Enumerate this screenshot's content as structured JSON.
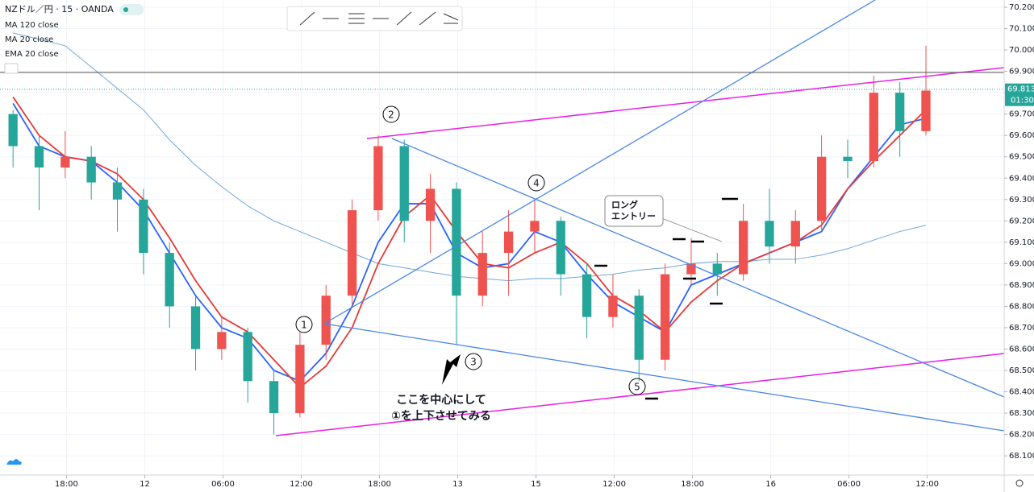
{
  "chart_data": {
    "type": "candlestick",
    "title": "NZドル／円 · 15 · OANDA",
    "up_color": "#ef5350",
    "down_color": "#26a69a",
    "x": [
      1,
      3,
      5,
      7,
      9,
      11,
      13,
      15,
      17,
      19,
      21,
      23,
      25,
      27,
      29,
      31,
      33,
      35,
      37,
      39,
      41,
      43,
      45,
      47,
      49,
      51,
      53,
      55,
      57,
      59,
      61,
      63,
      65,
      67,
      69,
      71
    ],
    "open": [
      69.7,
      69.55,
      69.45,
      69.5,
      69.38,
      69.3,
      69.05,
      68.8,
      68.6,
      68.68,
      68.45,
      68.3,
      68.62,
      68.85,
      69.25,
      69.55,
      69.2,
      69.35,
      68.85,
      69.05,
      69.15,
      69.2,
      68.95,
      68.75,
      68.85,
      68.55,
      68.95,
      69.0,
      68.95,
      69.2,
      69.08,
      69.2,
      69.5,
      69.48,
      69.8,
      69.62
    ],
    "high": [
      69.72,
      69.6,
      69.62,
      69.55,
      69.45,
      69.35,
      69.1,
      68.85,
      68.75,
      68.7,
      68.5,
      68.68,
      68.9,
      69.3,
      69.6,
      69.58,
      69.42,
      69.38,
      69.15,
      69.25,
      69.3,
      69.22,
      69.0,
      68.95,
      68.88,
      69.0,
      69.12,
      69.05,
      69.28,
      69.35,
      69.25,
      69.6,
      69.58,
      69.88,
      69.85,
      70.02
    ],
    "low": [
      69.45,
      69.25,
      69.4,
      69.3,
      69.15,
      68.95,
      68.7,
      68.5,
      68.55,
      68.35,
      68.2,
      68.28,
      68.55,
      68.8,
      69.2,
      69.1,
      69.05,
      68.62,
      68.8,
      68.85,
      69.05,
      68.85,
      68.65,
      68.7,
      68.45,
      68.5,
      68.9,
      68.85,
      68.92,
      69.0,
      69.0,
      69.15,
      69.4,
      69.45,
      69.5,
      69.6
    ],
    "close": [
      69.55,
      69.45,
      69.5,
      69.38,
      69.3,
      69.05,
      68.8,
      68.6,
      68.68,
      68.45,
      68.3,
      68.62,
      68.85,
      69.25,
      69.55,
      69.2,
      69.35,
      68.85,
      69.05,
      69.15,
      69.2,
      68.95,
      68.75,
      68.85,
      68.55,
      68.95,
      69.0,
      68.95,
      69.2,
      69.08,
      69.2,
      69.5,
      69.48,
      69.8,
      69.62,
      69.81
    ],
    "series": [
      {
        "name": "MA 120 close",
        "color": "#6fa8dc",
        "values": [
          70.08,
          70.05,
          70.02,
          69.92,
          69.82,
          69.72,
          69.58,
          69.46,
          69.36,
          69.27,
          69.2,
          69.15,
          69.1,
          69.05,
          69.0,
          68.98,
          68.96,
          68.94,
          68.93,
          68.92,
          68.93,
          68.93,
          68.94,
          68.95,
          68.97,
          68.98,
          69.0,
          69.01,
          69.01,
          69.02,
          69.02,
          69.04,
          69.07,
          69.11,
          69.15,
          69.18
        ]
      },
      {
        "name": "MA 20 close",
        "color": "#2962ff",
        "values": [
          69.75,
          69.55,
          69.5,
          69.48,
          69.38,
          69.25,
          69.05,
          68.85,
          68.7,
          68.65,
          68.5,
          68.45,
          68.58,
          68.8,
          69.1,
          69.28,
          69.28,
          69.05,
          68.98,
          69.0,
          69.15,
          69.1,
          68.95,
          68.82,
          68.75,
          68.68,
          68.9,
          68.95,
          69.0,
          69.05,
          69.1,
          69.15,
          69.35,
          69.5,
          69.65,
          69.68
        ]
      },
      {
        "name": "EMA 20 close",
        "color": "#e53935",
        "values": [
          69.78,
          69.6,
          69.5,
          69.48,
          69.42,
          69.3,
          69.12,
          68.92,
          68.75,
          68.68,
          68.55,
          68.42,
          68.52,
          68.7,
          69.0,
          69.22,
          69.32,
          69.15,
          69.0,
          68.98,
          69.05,
          69.1,
          69.0,
          68.85,
          68.78,
          68.68,
          68.82,
          68.92,
          69.0,
          69.05,
          69.1,
          69.18,
          69.35,
          69.48,
          69.6,
          69.72
        ]
      }
    ],
    "xlim": [
      0,
      77
    ],
    "xticks": [
      {
        "value": 5.1,
        "label": "18:00"
      },
      {
        "value": 11.1,
        "label": "12"
      },
      {
        "value": 17.1,
        "label": "06:00"
      },
      {
        "value": 23.1,
        "label": "12:00"
      },
      {
        "value": 29.1,
        "label": "18:00"
      },
      {
        "value": 35.1,
        "label": "13"
      },
      {
        "value": 41.1,
        "label": "15"
      },
      {
        "value": 47.1,
        "label": "12:00"
      },
      {
        "value": 53.1,
        "label": "18:00"
      },
      {
        "value": 59.1,
        "label": "16"
      },
      {
        "value": 65.1,
        "label": "06:00"
      },
      {
        "value": 71.1,
        "label": "12:00"
      }
    ],
    "ylim": [
      68.01,
      70.234
    ],
    "yticks": [
      {
        "value": 68.1,
        "label": "68.100"
      },
      {
        "value": 68.2,
        "label": "68.200"
      },
      {
        "value": 68.3,
        "label": "68.300"
      },
      {
        "value": 68.4,
        "label": "68.400"
      },
      {
        "value": 68.5,
        "label": "68.500"
      },
      {
        "value": 68.6,
        "label": "68.600"
      },
      {
        "value": 68.7,
        "label": "68.700"
      },
      {
        "value": 68.8,
        "label": "68.800"
      },
      {
        "value": 68.9,
        "label": "68.900"
      },
      {
        "value": 69.0,
        "label": "69.000"
      },
      {
        "value": 69.1,
        "label": "69.100"
      },
      {
        "value": 69.2,
        "label": "69.200"
      },
      {
        "value": 69.3,
        "label": "69.300"
      },
      {
        "value": 69.4,
        "label": "69.400"
      },
      {
        "value": 69.5,
        "label": "69.500"
      },
      {
        "value": 69.6,
        "label": "69.600"
      },
      {
        "value": 69.7,
        "label": "69.700"
      },
      {
        "value": 69.8,
        "label": "69.800"
      },
      {
        "value": 69.9,
        "label": "69.900"
      },
      {
        "value": 70.0,
        "label": "70.000"
      },
      {
        "value": 70.1,
        "label": "70.100"
      },
      {
        "value": 70.2,
        "label": "70.200"
      }
    ],
    "grid": true,
    "last_price": {
      "value": 69.813,
      "label": "69.813",
      "countdown": "01:30"
    },
    "annotations": {
      "points": [
        "1",
        "2",
        "3",
        "4",
        "5"
      ],
      "entry": [
        "ロング",
        "エントリー"
      ],
      "note": [
        "ここを中心にして",
        "①を上下させてみる"
      ]
    }
  }
}
